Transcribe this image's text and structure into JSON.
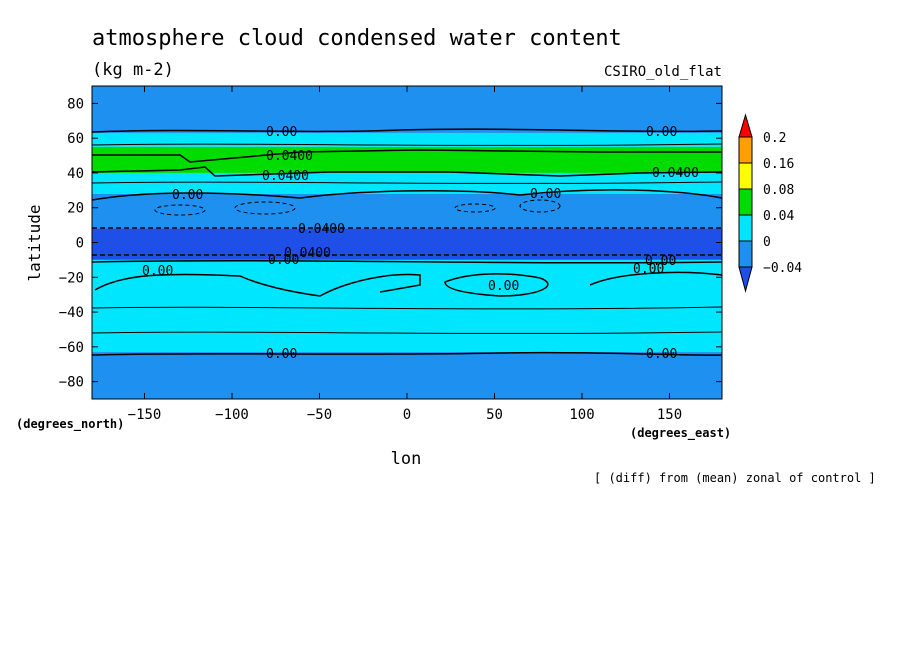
{
  "chart_data": {
    "type": "heatmap",
    "title": "atmosphere cloud condensed water content",
    "units": "(kg m-2)",
    "model": "CSIRO_old_flat",
    "xlabel": "lon",
    "ylabel": "latitude",
    "x_units": "(degrees_east)",
    "y_units": "(degrees_north)",
    "note": "[ (diff) from (mean) zonal of control ]",
    "xlim": [
      -180,
      180
    ],
    "ylim": [
      -90,
      90
    ],
    "xticks": [
      -150,
      -100,
      -50,
      0,
      50,
      100,
      150
    ],
    "yticks": [
      80,
      60,
      40,
      20,
      0,
      -20,
      -40,
      -60,
      -80
    ],
    "colorbar": {
      "levels": [
        -0.04,
        0,
        0.04,
        0.08,
        0.16,
        0.2
      ],
      "labels": [
        "0.2",
        "0.16",
        "0.08",
        "0.04",
        "0",
        "-0.04"
      ],
      "colors": [
        "#1e4fe6",
        "#1e90f0",
        "#00e6ff",
        "#00dc00",
        "#ffff00",
        "#ffa000",
        "#ff0000"
      ]
    },
    "bands": [
      {
        "lat_from": 63,
        "lat_to": 90,
        "value": "-0.04 to 0",
        "color": "#1e90f0"
      },
      {
        "lat_from": 55,
        "lat_to": 63,
        "value": "0 to 0.04",
        "color": "#00e6ff"
      },
      {
        "lat_from": 40,
        "lat_to": 55,
        "value": "0.04 to 0.08",
        "color": "#00dc00"
      },
      {
        "lat_from": 28,
        "lat_to": 40,
        "value": "0 to 0.04",
        "color": "#00e6ff"
      },
      {
        "lat_from": 8,
        "lat_to": 28,
        "value": "-0.04 to 0",
        "color": "#1e90f0"
      },
      {
        "lat_from": -10,
        "lat_to": 8,
        "value": "< -0.04",
        "color": "#1e4fe6"
      },
      {
        "lat_from": -63,
        "lat_to": -10,
        "value": "0 to 0.04",
        "color": "#00e6ff"
      },
      {
        "lat_from": -90,
        "lat_to": -63,
        "value": "-0.04 to 0",
        "color": "#1e90f0"
      }
    ],
    "contour_labels": [
      "0.00",
      "0.0400",
      "0.0400",
      "0.00",
      "0.00",
      "0.0400",
      "0.00",
      "0.0400",
      "0.0400",
      "0.00",
      "0.00",
      "0.00",
      "0.00",
      "0.00",
      "0.00",
      "0.00"
    ]
  }
}
